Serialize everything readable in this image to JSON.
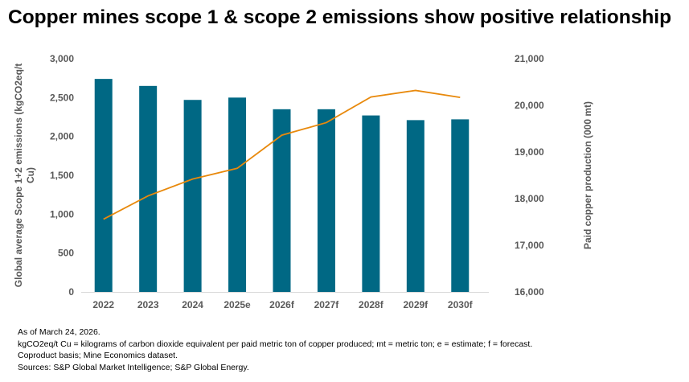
{
  "chart_data": {
    "type": "bar+line",
    "title": "Copper mines scope 1 & scope 2 emissions show positive relationship",
    "categories": [
      "2022",
      "2023",
      "2024",
      "2025e",
      "2026f",
      "2027f",
      "2028f",
      "2029f",
      "2030f"
    ],
    "series": [
      {
        "type": "bar",
        "axis": "left",
        "color": "#006884",
        "values": [
          2740,
          2650,
          2470,
          2500,
          2350,
          2350,
          2270,
          2210,
          2220
        ]
      },
      {
        "type": "line",
        "axis": "right",
        "color": "#E8890C",
        "values": [
          17560,
          18060,
          18420,
          18650,
          19360,
          19630,
          20180,
          20320,
          20170
        ]
      }
    ],
    "ylabel": "Global average Scope 1+2 emissions (kgCO2eq/t Cu)",
    "ylabel_right": "Paid copper production (000 mt)",
    "ylim": [
      0,
      3000
    ],
    "yticks": [
      "0",
      "500",
      "1,000",
      "1,500",
      "2,000",
      "2,500",
      "3,000"
    ],
    "ylim_right": [
      16000,
      21000
    ],
    "yticks_right": [
      "16,000",
      "17,000",
      "18,000",
      "19,000",
      "20,000",
      "21,000"
    ],
    "grid": false
  },
  "notes": [
    "As of March 24, 2026.",
    "kgCO2eq/t Cu = kilograms of carbon dioxide equivalent per paid metric ton of copper produced; mt = metric ton; e = estimate; f = forecast.",
    "Coproduct basis; Mine Economics dataset.",
    "Sources: S&P Global Market Intelligence; S&P Global Energy."
  ]
}
